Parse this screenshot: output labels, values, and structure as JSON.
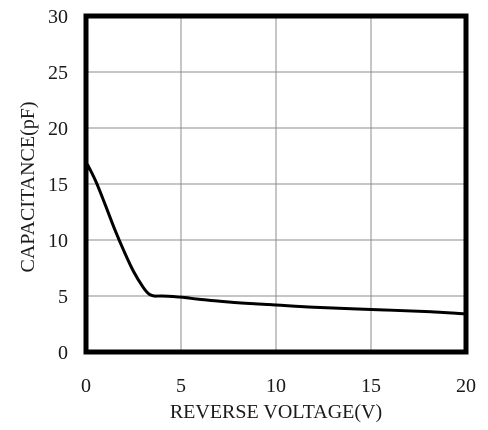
{
  "chart_data": {
    "type": "line",
    "title": "",
    "xlabel": "REVERSE VOLTAGE(V)",
    "ylabel": "CAPACITANCE(pF)",
    "xlim": [
      0,
      20
    ],
    "ylim": [
      0,
      30
    ],
    "xticks": [
      "0",
      "5",
      "10",
      "15",
      "20"
    ],
    "yticks": [
      "0",
      "5",
      "10",
      "15",
      "20",
      "25",
      "30"
    ],
    "grid": true,
    "legend": "none",
    "colors": {
      "line": "#000000",
      "grid": "#8c8c8c",
      "frame": "#000000"
    },
    "series": [
      {
        "x": [
          0,
          0.5,
          1,
          1.5,
          2,
          2.5,
          3,
          3.3,
          3.6,
          4,
          5,
          6,
          8,
          10,
          12,
          15,
          18,
          20
        ],
        "y": [
          17.0,
          15.3,
          13.2,
          11.0,
          9.0,
          7.2,
          5.8,
          5.2,
          5.0,
          5.0,
          4.9,
          4.7,
          4.4,
          4.2,
          4.0,
          3.8,
          3.6,
          3.4
        ]
      }
    ]
  }
}
